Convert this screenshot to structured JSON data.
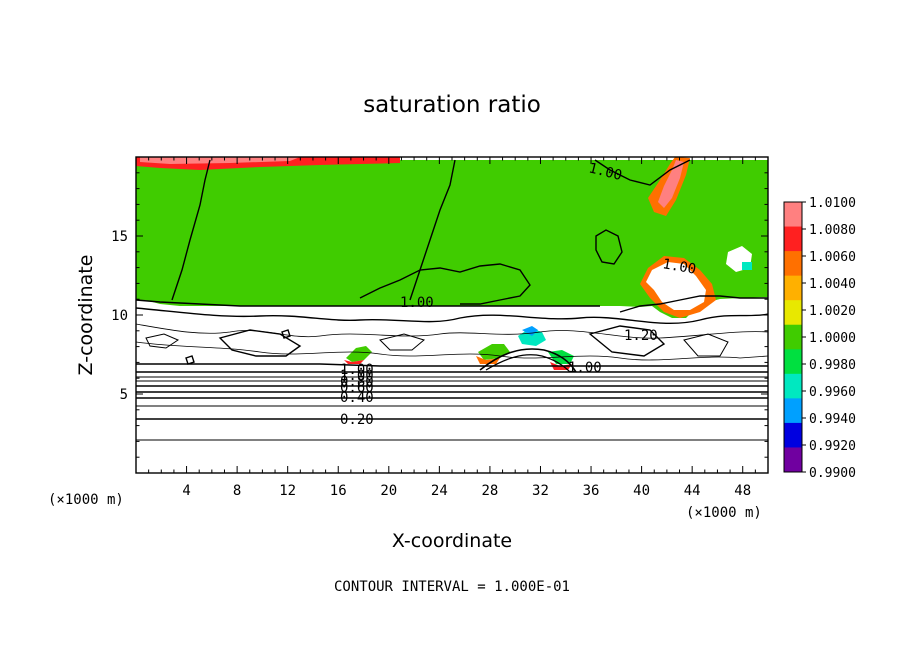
{
  "chart_data": {
    "type": "heatmap",
    "title": "saturation ratio",
    "xlabel": "X-coordinate",
    "ylabel": "Z-coordinate",
    "x_unit": "(×1000 m)",
    "y_unit": "(×1000 m)",
    "xlim": [
      0,
      50
    ],
    "ylim": [
      0,
      20
    ],
    "x_ticks": [
      "4",
      "8",
      "12",
      "16",
      "20",
      "24",
      "28",
      "32",
      "36",
      "40",
      "44",
      "48"
    ],
    "y_ticks": [
      "5",
      "10",
      "15"
    ],
    "colorbar": {
      "labels": [
        "1.0100",
        "1.0080",
        "1.0060",
        "1.0040",
        "1.0020",
        "1.0000",
        "0.9980",
        "0.9960",
        "0.9940",
        "0.9920",
        "0.9900"
      ],
      "colors": [
        "#ff8080",
        "#ff2020",
        "#ff7000",
        "#ffb000",
        "#e8e800",
        "#40cc00",
        "#00e040",
        "#00e8c0",
        "#00a0ff",
        "#0000e0",
        "#7000a0"
      ]
    },
    "contour_labels": [
      "1.00",
      "1.00",
      "1.00",
      "1.00",
      "1.00",
      "1.20",
      "1.00",
      "0.80",
      "0.60",
      "0.40",
      "0.20"
    ],
    "contour_interval_text": "CONTOUR INTERVAL = 1.000E-01"
  }
}
